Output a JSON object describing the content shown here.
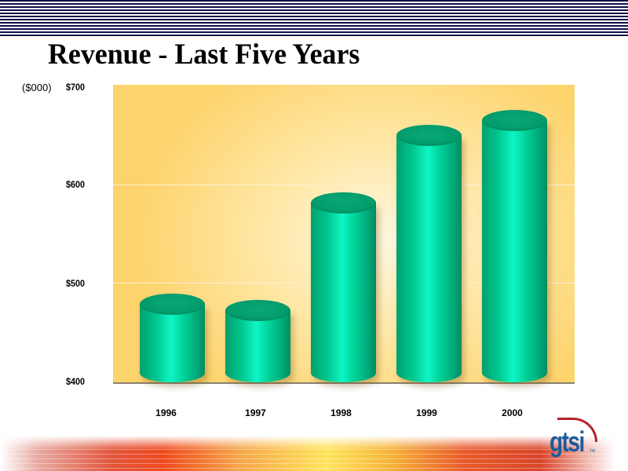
{
  "slide": {
    "title": "Revenue - Last Five Years",
    "unit_label": "($000)",
    "logo_text": "gtsi",
    "logo_tm": "TM"
  },
  "y_ticks": [
    "$700",
    "$600",
    "$500",
    "$400"
  ],
  "x_ticks": [
    "1996",
    "1997",
    "1998",
    "1999",
    "2000"
  ],
  "colors": {
    "bar": "#00c78e",
    "bar_top": "#039a6a",
    "panel": "#fdd36b",
    "stripes": "#0d0d4a",
    "logo": "#1a5c9c",
    "logo_swoosh": "#b5212a"
  },
  "chart_data": {
    "type": "bar",
    "title": "Revenue - Last Five Years",
    "xlabel": "",
    "ylabel": "($000)",
    "categories": [
      "1996",
      "1997",
      "1998",
      "1999",
      "2000"
    ],
    "values": [
      480,
      474,
      583,
      652,
      667
    ],
    "ylim": [
      400,
      700
    ],
    "yticks": [
      400,
      500,
      600,
      700
    ],
    "ytick_labels": [
      "$400",
      "$500",
      "$600",
      "$700"
    ],
    "grid": true,
    "legend": null,
    "style": "3d-cylinder"
  }
}
